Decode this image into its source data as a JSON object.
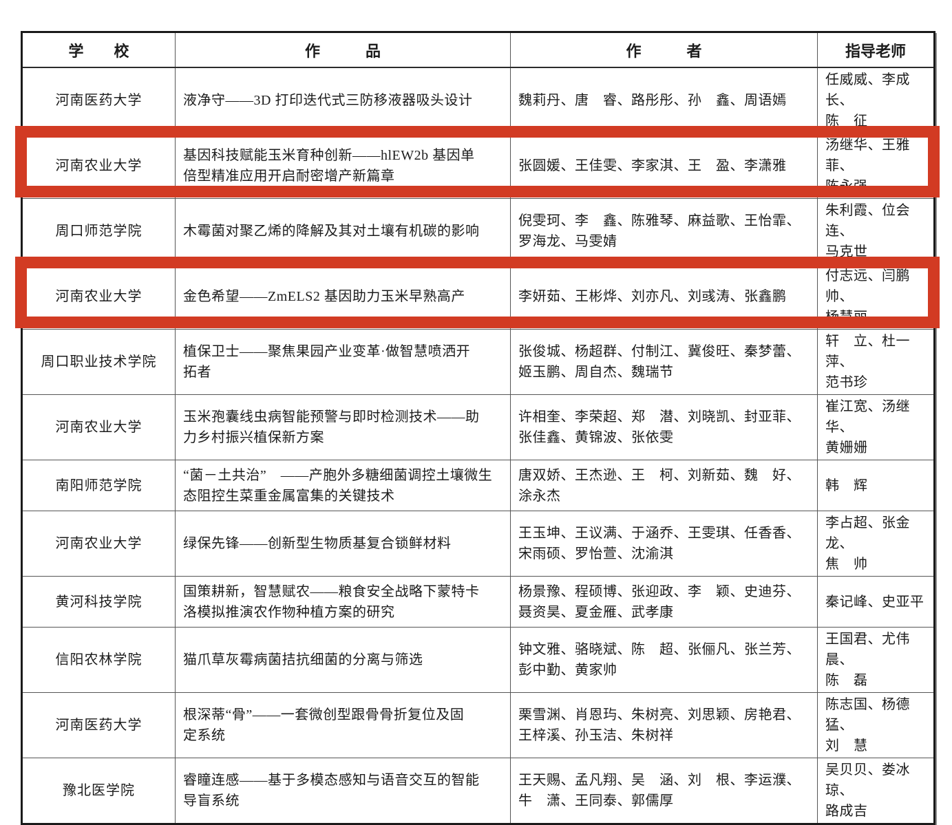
{
  "highlight_color": "#d23b23",
  "table": {
    "headers": [
      "学　　校",
      "作　　　品",
      "作　　　者",
      "指导老师"
    ],
    "rows": [
      {
        "school": "河南医药大学",
        "work": "液净守——3D 打印迭代式三防移液器吸头设计",
        "authors": "魏莉丹、唐　睿、路彤彤、孙　鑫、周语嫣",
        "advisors": "任威威、李成长、\n陈　征",
        "highlighted": false
      },
      {
        "school": "河南农业大学",
        "work": "基因科技赋能玉米育种创新——hlEW2b 基因单\n倍型精准应用开启耐密增产新篇章",
        "authors": "张圆媛、王佳雯、李家淇、王　盈、李潇雅",
        "advisors": "汤继华、王雅菲、\n陈永强",
        "highlighted": true
      },
      {
        "school": "周口师范学院",
        "work": "木霉菌对聚乙烯的降解及其对土壤有机碳的影响",
        "authors": "倪雯珂、李　鑫、陈雅琴、麻益歌、王怡霏、\n罗海龙、马雯婧",
        "advisors": "朱利霞、位会连、\n马克世",
        "highlighted": false
      },
      {
        "school": "河南农业大学",
        "work": "金色希望——ZmELS2 基因助力玉米早熟高产",
        "authors": "李妍茹、王彬烨、刘亦凡、刘彧涛、张鑫鹏",
        "advisors": "付志远、闫鹏帅、\n杨慧丽",
        "highlighted": true
      },
      {
        "school": "周口职业技术学院",
        "work": "植保卫士——聚焦果园产业变革·做智慧喷洒开\n拓者",
        "authors": "张俊城、杨超群、付制江、冀俊旺、秦梦蕾、\n姬玉鹏、周自杰、魏瑞节",
        "advisors": "轩　立、杜一萍、\n范书珍",
        "highlighted": false
      },
      {
        "school": "河南农业大学",
        "work": "玉米孢囊线虫病智能预警与即时检测技术——助\n力乡村振兴植保新方案",
        "authors": "许相奎、李荣超、郑　潜、刘晓凯、封亚菲、\n张佳鑫、黄锦波、张依雯",
        "advisors": "崔江宽、汤继华、\n黄姗姗",
        "highlighted": false
      },
      {
        "school": "南阳师范学院",
        "work": "“菌－土共治”　——产胞外多糖细菌调控土壤微生\n态阻控生菜重金属富集的关键技术",
        "authors": "唐双娇、王杰逊、王　柯、刘新茹、魏　好、\n涂永杰",
        "advisors": "韩　辉",
        "highlighted": false
      },
      {
        "school": "河南农业大学",
        "work": "绿保先锋——创新型生物质基复合锁鲜材料",
        "authors": "王玉坤、王议满、于涵乔、王雯琪、任香香、\n宋雨硕、罗怡萱、沈渝淇",
        "advisors": "李占超、张金龙、\n焦　帅",
        "highlighted": false
      },
      {
        "school": "黄河科技学院",
        "work": "国策耕新，智慧赋农——粮食安全战略下蒙特卡\n洛模拟推演农作物种植方案的研究",
        "authors": "杨景豫、程硕博、张迎政、李　颖、史迪芬、\n聂资昊、夏金雁、武孝康",
        "advisors": "秦记峰、史亚平",
        "highlighted": false
      },
      {
        "school": "信阳农林学院",
        "work": "猫爪草灰霉病菌拮抗细菌的分离与筛选",
        "authors": "钟文雅、骆晓斌、陈　超、张俪凡、张兰芳、\n彭中勤、黄家帅",
        "advisors": "王国君、尤伟晨、\n陈　磊",
        "highlighted": false
      },
      {
        "school": "河南医药大学",
        "work": "根深蒂“骨”——一套微创型跟骨骨折复位及固\n定系统",
        "authors": "栗雪渊、肖恩玙、朱树亮、刘思颖、房艳君、\n王梓溪、孙玉洁、朱树祥",
        "advisors": "陈志国、杨德猛、\n刘　慧",
        "highlighted": false
      },
      {
        "school": "豫北医学院",
        "work": "睿瞳连感——基于多模态感知与语音交互的智能\n导盲系统",
        "authors": "王天赐、孟凡翔、吴　涵、刘　根、李运濮、\n牛　潇、王同泰、郭儒厚",
        "advisors": "吴贝贝、娄冰琼、\n路成吉",
        "highlighted": false
      }
    ]
  }
}
